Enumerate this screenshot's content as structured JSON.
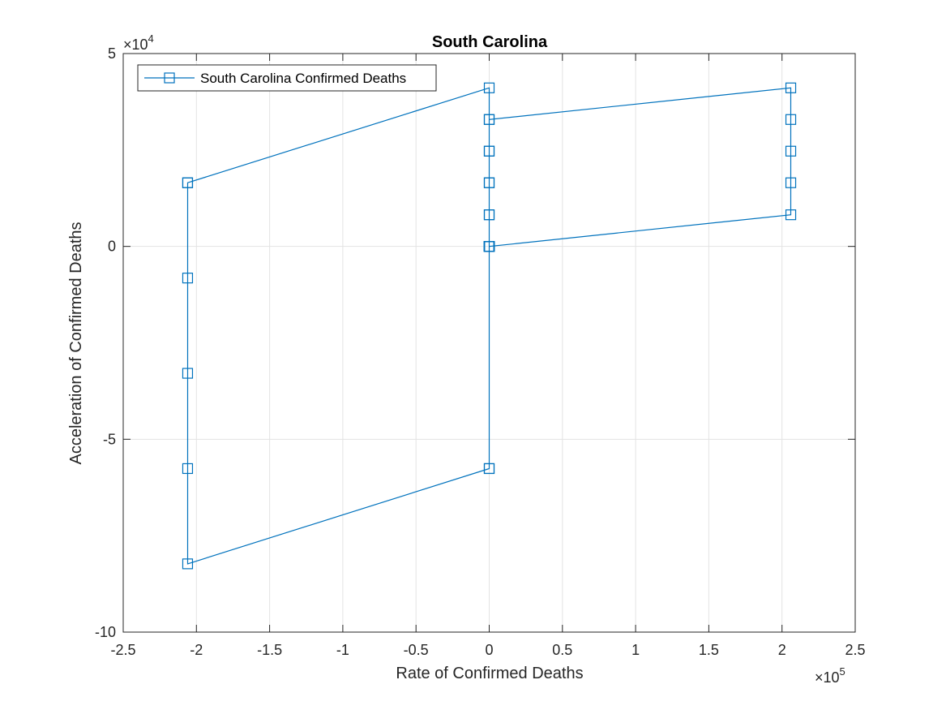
{
  "chart_data": {
    "type": "line",
    "title": "South Carolina",
    "xlabel": "Rate of Confirmed Deaths",
    "ylabel": "Acceleration of Confirmed Deaths",
    "xlim": [
      -250000,
      250000
    ],
    "ylim": [
      -100000,
      50000
    ],
    "x_ticks": [
      -250000,
      -200000,
      -150000,
      -100000,
      -50000,
      0,
      50000,
      100000,
      150000,
      200000,
      250000
    ],
    "x_tick_labels": [
      "-2.5",
      "-2",
      "-1.5",
      "-1",
      "-0.5",
      "0",
      "0.5",
      "1",
      "1.5",
      "2",
      "2.5"
    ],
    "y_ticks": [
      -100000,
      -50000,
      0,
      50000
    ],
    "y_tick_labels": [
      "-10",
      "-5",
      "0",
      "5"
    ],
    "x_exponent": {
      "base": "×10",
      "power": "5"
    },
    "y_exponent": {
      "base": "×10",
      "power": "4"
    },
    "grid": true,
    "legend_position": "top-left",
    "series": [
      {
        "name": "South Carolina Confirmed Deaths",
        "color": "#0072BD",
        "marker": "square",
        "x": [
          0,
          0,
          0,
          0,
          0,
          0,
          0,
          0,
          0,
          0,
          206000,
          206000,
          206000,
          206000,
          206000,
          0,
          0,
          0,
          0,
          0,
          0,
          0,
          -206000,
          -206000,
          -206000,
          -206000,
          -206000,
          -206000,
          0,
          0,
          0,
          0,
          0,
          0
        ],
        "y": [
          0,
          0,
          0,
          0,
          0,
          0,
          8200,
          16500,
          24700,
          32900,
          41100,
          32900,
          24700,
          16500,
          8200,
          0,
          0,
          0,
          0,
          0,
          -57600,
          -57600,
          -82300,
          -57600,
          -32900,
          -8200,
          16500,
          16500,
          41100,
          32900,
          24700,
          16500,
          8200,
          0
        ]
      }
    ]
  }
}
